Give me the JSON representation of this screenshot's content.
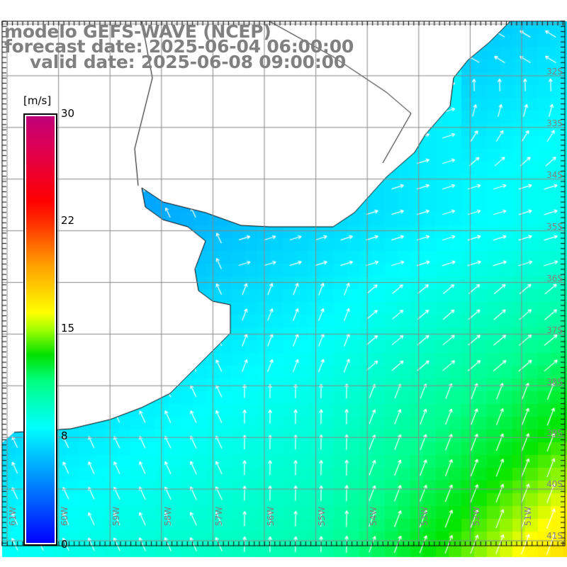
{
  "title": {
    "model": "modelo GEFS-WAVE (NCEP)",
    "forecast": "forecast date: 2025-06-04 06:00:00",
    "valid": "valid date: 2025-06-08 09:00:00"
  },
  "colorbar": {
    "unit": "[m/s]",
    "ticks": [
      "30",
      "22",
      "15",
      "8",
      "0"
    ],
    "colors": [
      "#0000ff",
      "#00ffff",
      "#00e000",
      "#ffff00",
      "#ff0000",
      "#c0007a"
    ]
  },
  "latitude_labels": [
    "32S",
    "33S",
    "34S",
    "35S",
    "36S",
    "37S",
    "38S",
    "39S",
    "40S",
    "41S"
  ],
  "longitude_labels": [
    "61W",
    "60W",
    "59W",
    "58W",
    "57W",
    "56W",
    "55W",
    "54W",
    "53W",
    "52W",
    "51W"
  ]
}
